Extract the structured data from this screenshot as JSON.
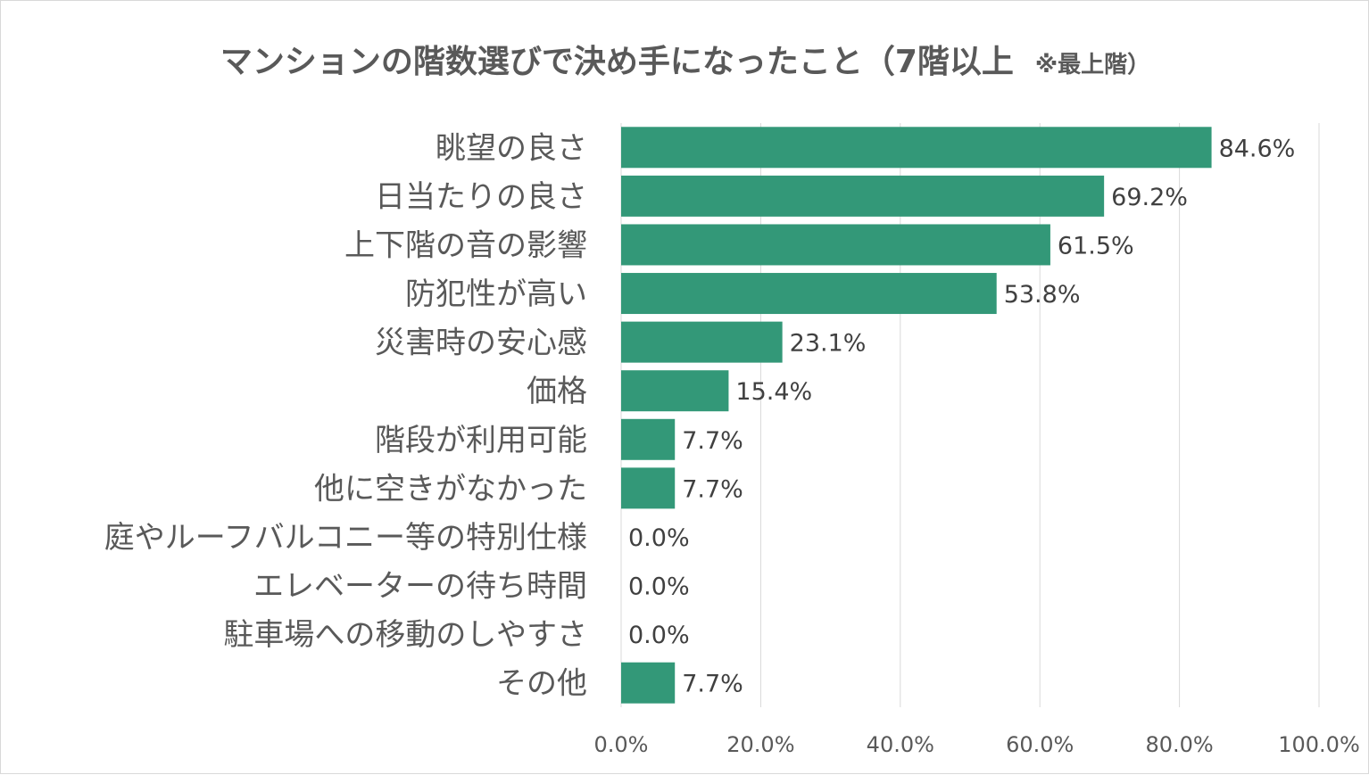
{
  "chart_data": {
    "type": "bar",
    "orientation": "horizontal",
    "title": "マンションの階数選びで決め手になったこと（7階以上",
    "subtitle": "※最上階）",
    "categories": [
      "眺望の良さ",
      "日当たりの良さ",
      "上下階の音の影響",
      "防犯性が高い",
      "災害時の安心感",
      "価格",
      "階段が利用可能",
      "他に空きがなかった",
      "庭やルーフバルコニー等の特別仕様",
      "エレベーターの待ち時間",
      "駐車場への移動のしやすさ",
      "その他"
    ],
    "values": [
      84.6,
      69.2,
      61.5,
      53.8,
      23.1,
      15.4,
      7.7,
      7.7,
      0.0,
      0.0,
      0.0,
      7.7
    ],
    "value_labels": [
      "84.6%",
      "69.2%",
      "61.5%",
      "53.8%",
      "23.1%",
      "15.4%",
      "7.7%",
      "7.7%",
      "0.0%",
      "0.0%",
      "0.0%",
      "7.7%"
    ],
    "xlim": [
      0,
      100
    ],
    "xticks": [
      0,
      20,
      40,
      60,
      80,
      100
    ],
    "xtick_labels": [
      "0.0%",
      "20.0%",
      "40.0%",
      "60.0%",
      "80.0%",
      "100.0%"
    ],
    "grid": true,
    "legend": "none",
    "bar_color": "#339878"
  }
}
